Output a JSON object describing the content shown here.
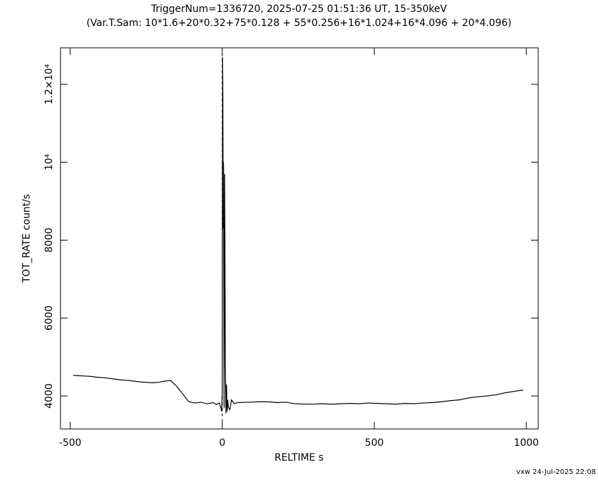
{
  "chart_data": {
    "type": "line",
    "title": "TriggerNum=1336720, 2025-07-25 01:51:36 UT, 15-350keV",
    "subtitle": "(Var.T.Sam: 10*1.6+20*0.32+75*0.128  +  55*0.256+16*1.024+16*4.096  +  20*4.096)",
    "x_label": "RELTIME  s",
    "y_label": "TOT_RATE  count/s",
    "footer": "vxw 24-Jul-2025 22:08",
    "color": "#000000",
    "xlim": [
      -532,
      1039
    ],
    "ylim": [
      3153,
      12937
    ],
    "xticks": [
      -500,
      0,
      500,
      1000
    ],
    "yticks": [
      4000,
      6000,
      8000,
      {
        "value": 10000,
        "label": "10⁴"
      },
      {
        "value": 12000,
        "label": "1.2×10⁴"
      }
    ],
    "x": [
      -490,
      -470,
      -450,
      -430,
      -410,
      -390,
      -370,
      -350,
      -330,
      -310,
      -290,
      -270,
      -250,
      -230,
      -210,
      -190,
      -170,
      -150,
      -130,
      -110,
      -90,
      -70,
      -50,
      -30,
      -20,
      -10,
      -5,
      -2,
      0,
      1,
      2,
      3,
      4,
      5,
      6,
      8,
      10,
      12,
      14,
      16,
      18,
      20,
      25,
      30,
      40,
      50,
      90,
      120,
      150,
      180,
      210,
      240,
      270,
      300,
      330,
      360,
      390,
      420,
      450,
      480,
      510,
      540,
      570,
      600,
      630,
      660,
      690,
      720,
      750,
      780,
      810,
      840,
      870,
      900,
      930,
      960,
      990
    ],
    "values": [
      4530,
      4520,
      4510,
      4500,
      4480,
      4470,
      4450,
      4430,
      4410,
      4400,
      4380,
      4360,
      4350,
      4340,
      4350,
      4380,
      4400,
      4250,
      4050,
      3850,
      3820,
      3840,
      3800,
      3830,
      3780,
      3820,
      3720,
      3600,
      4100,
      12700,
      11600,
      8300,
      10000,
      7000,
      3700,
      9700,
      4800,
      3550,
      4300,
      3600,
      3900,
      3700,
      3650,
      3900,
      3800,
      3830,
      3840,
      3850,
      3850,
      3830,
      3840,
      3800,
      3790,
      3790,
      3800,
      3790,
      3800,
      3810,
      3800,
      3820,
      3810,
      3800,
      3790,
      3810,
      3800,
      3820,
      3830,
      3850,
      3880,
      3900,
      3950,
      3980,
      4000,
      4030,
      4080,
      4120,
      4150
    ]
  }
}
